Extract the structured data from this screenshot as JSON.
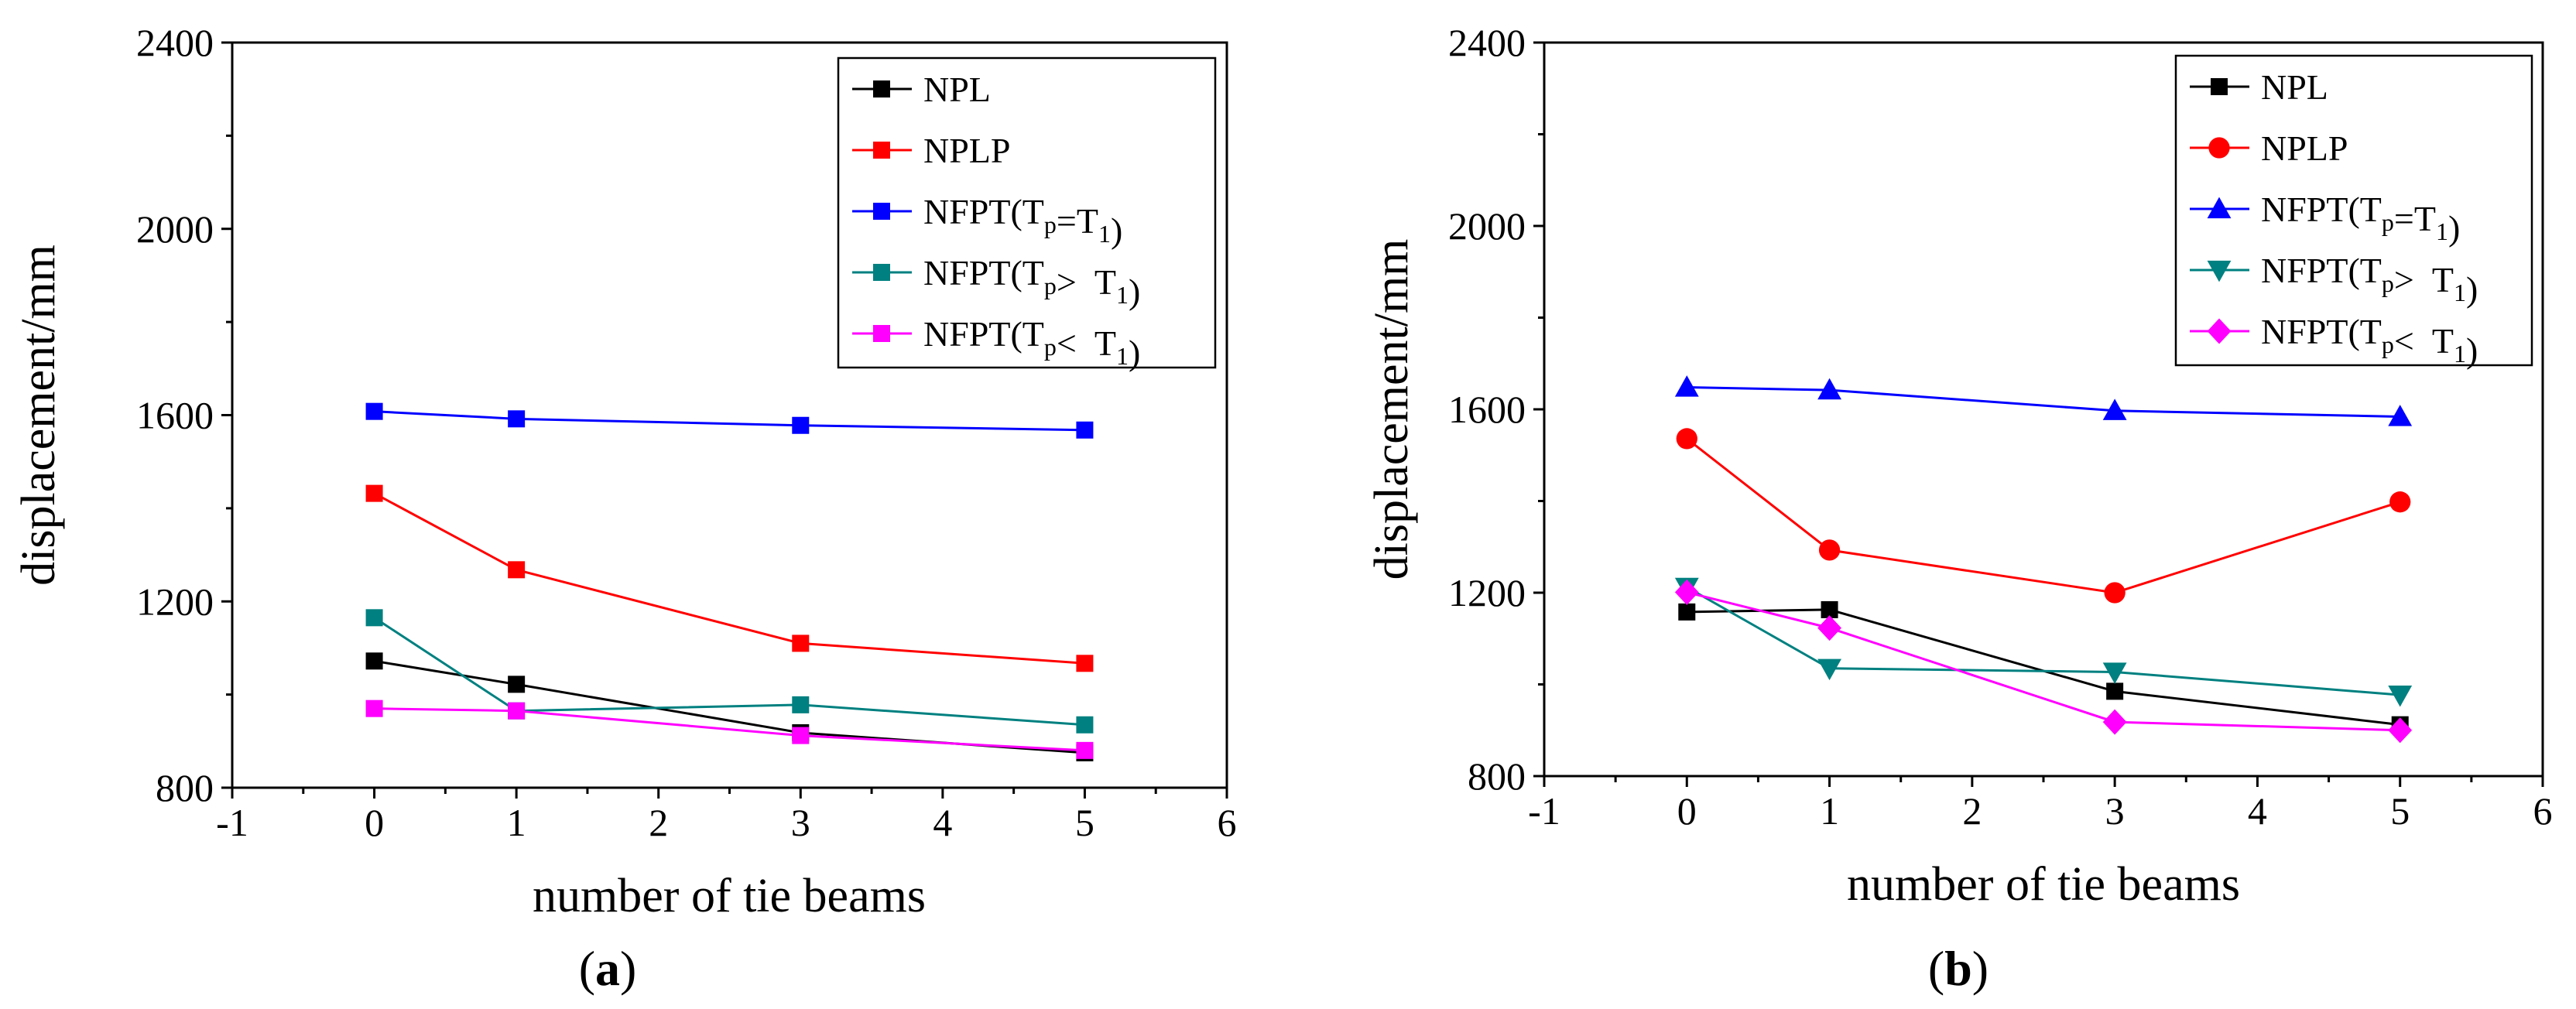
{
  "chart_data": [
    {
      "type": "line",
      "caption": {
        "open": "(",
        "letter": "a",
        "close": ")"
      },
      "xlabel": "number of tie beams",
      "ylabel": "displacement/mm",
      "xlim": [
        -1,
        6
      ],
      "ylim": [
        800,
        2400
      ],
      "xticks": [
        "-1",
        "0",
        "1",
        "2",
        "3",
        "4",
        "5",
        "6"
      ],
      "yticks": [
        "800",
        "1200",
        "1600",
        "2000",
        "2400"
      ],
      "x": [
        0,
        1,
        3,
        5
      ],
      "legend_position": "top-right",
      "series": [
        {
          "name": "NPL",
          "color": "#000000",
          "marker": "square",
          "values": [
            1072,
            1022,
            918,
            875
          ]
        },
        {
          "name": "NPLP",
          "color": "#ff0000",
          "marker": "square",
          "values": [
            1432,
            1268,
            1110,
            1067
          ]
        },
        {
          "name": "NFPT(Tp=T1)",
          "color": "#0000ff",
          "marker": "square",
          "values": [
            1608,
            1592,
            1578,
            1568
          ]
        },
        {
          "name": "NFPT(Tp>  T1)",
          "color": "#008080",
          "marker": "square",
          "values": [
            1165,
            965,
            978,
            935
          ]
        },
        {
          "name": "NFPT(Tp<  T1)",
          "color": "#ff00ff",
          "marker": "square",
          "values": [
            970,
            965,
            912,
            880
          ]
        }
      ]
    },
    {
      "type": "line",
      "caption": {
        "open": "(",
        "letter": "b",
        "close": ")"
      },
      "xlabel": "number of tie beams",
      "ylabel": "displacement/mm",
      "xlim": [
        -1,
        6
      ],
      "ylim": [
        800,
        2400
      ],
      "xticks": [
        "-1",
        "0",
        "1",
        "2",
        "3",
        "4",
        "5",
        "6"
      ],
      "yticks": [
        "800",
        "1200",
        "1600",
        "2000",
        "2400"
      ],
      "x": [
        0,
        1,
        3,
        5
      ],
      "legend_position": "top-right",
      "series": [
        {
          "name": "NPL",
          "color": "#000000",
          "marker": "square",
          "values": [
            1158,
            1163,
            985,
            912
          ]
        },
        {
          "name": "NPLP",
          "color": "#ff0000",
          "marker": "circle",
          "values": [
            1536,
            1293,
            1200,
            1398
          ]
        },
        {
          "name": "NFPT(Tp=T1)",
          "color": "#0000ff",
          "marker": "triangle-up",
          "values": [
            1648,
            1642,
            1597,
            1584
          ]
        },
        {
          "name": "NFPT(Tp>  T1)",
          "color": "#008080",
          "marker": "triangle-down",
          "values": [
            1212,
            1035,
            1027,
            977
          ]
        },
        {
          "name": "NFPT(Tp<  T1)",
          "color": "#ff00ff",
          "marker": "diamond",
          "values": [
            1201,
            1123,
            918,
            900
          ]
        }
      ]
    }
  ]
}
